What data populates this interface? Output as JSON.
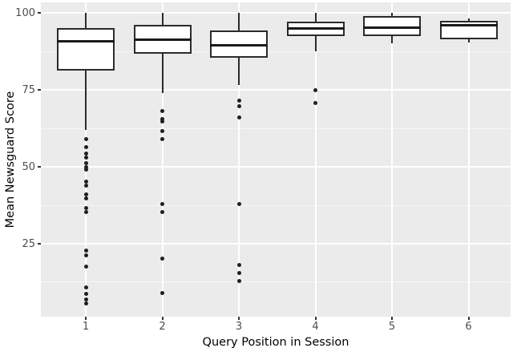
{
  "chart_data": {
    "type": "boxplot",
    "title": "",
    "xlabel": "Query Position in Session",
    "ylabel": "Mean Newsguard Score",
    "x_categories": [
      "1",
      "2",
      "3",
      "4",
      "5",
      "6"
    ],
    "y_ticks": [
      25,
      50,
      75,
      100
    ],
    "y_minor_gridlines": [
      12.5,
      37.5,
      62.5,
      87.5
    ],
    "y_axis_range_shown": [
      1.3,
      103.4
    ],
    "grid": true,
    "legend": "none",
    "colors": {
      "panel_bg": "#EBEBEB",
      "gridline": "#FFFFFF",
      "box_fill": "#FFFFFF",
      "box_border": "#2B2B2B",
      "median": "#1A1A1A",
      "outlier": "#1F1F1F",
      "tick_text": "#4D4D4D",
      "axis_title_text": "#000000"
    },
    "boxes": [
      {
        "category": "1",
        "whisker_low": 62,
        "q1": 81.3,
        "median": 90.7,
        "q3": 95,
        "whisker_high": 100,
        "outliers": [
          59,
          56.5,
          54.2,
          52.9,
          51.3,
          50,
          49,
          45.1,
          43.8,
          40.9,
          39.6,
          36.5,
          35.2,
          22.7,
          21.1,
          17.7,
          10.9,
          8.6,
          7,
          5.7
        ]
      },
      {
        "category": "2",
        "whisker_low": 74,
        "q1": 86.8,
        "median": 91.3,
        "q3": 96,
        "whisker_high": 100,
        "outliers": [
          68.2,
          65.6,
          64.6,
          61.7,
          58.9,
          37.8,
          35.2,
          20.3,
          9.1
        ]
      },
      {
        "category": "3",
        "whisker_low": 76.6,
        "q1": 85.4,
        "median": 89.4,
        "q3": 94.2,
        "whisker_high": 100,
        "outliers": [
          71.6,
          69.8,
          65.9,
          37.8,
          18.2,
          15.6,
          13
        ]
      },
      {
        "category": "4",
        "whisker_low": 87.5,
        "q1": 92.4,
        "median": 95,
        "q3": 97.1,
        "whisker_high": 100,
        "outliers": [
          75,
          70.8
        ]
      },
      {
        "category": "5",
        "whisker_low": 90.2,
        "q1": 92.4,
        "median": 95.1,
        "q3": 99.1,
        "whisker_high": 100,
        "outliers": []
      },
      {
        "category": "6",
        "whisker_low": 90.3,
        "q1": 91.3,
        "median": 96.1,
        "q3": 97.4,
        "whisker_high": 98.3,
        "outliers": []
      }
    ]
  }
}
